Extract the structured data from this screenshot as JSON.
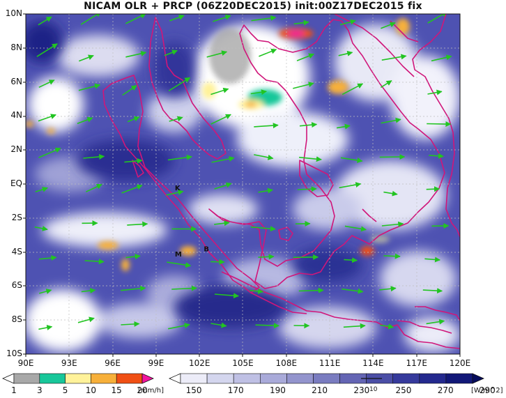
{
  "title": "NICAM OLR + PRCP (06Z20DEC2015) init:00Z17DEC2015 fix",
  "map": {
    "lat_labels": [
      "10N",
      "8N",
      "6N",
      "4N",
      "2N",
      "EQ",
      "2S",
      "4S",
      "6S",
      "8S",
      "10S"
    ],
    "lon_labels": [
      "90E",
      "93E",
      "96E",
      "99E",
      "102E",
      "105E",
      "108E",
      "111E",
      "114E",
      "117E",
      "120E"
    ],
    "lon_range": [
      90,
      120
    ],
    "lat_range": [
      -10,
      10
    ],
    "colors": {
      "coastline": "#d0167a",
      "wind_vector": "#22c422",
      "grid": "#bfbfbf"
    },
    "station_markers": [
      {
        "label": "K",
        "lon": 100.3,
        "lat": -0.2
      },
      {
        "label": "M",
        "lon": 100.3,
        "lat": -4.1
      },
      {
        "label": "B",
        "lon": 102.3,
        "lat": -3.8
      }
    ]
  },
  "prcp_colorbar": {
    "ticks": [
      "1",
      "3",
      "5",
      "10",
      "15",
      "20"
    ],
    "unit": "[mm/h]",
    "colors": [
      "#ffffff",
      "#a8a8a8",
      "#18c79a",
      "#fff29a",
      "#f7b03a",
      "#f04f14",
      "#f0159e"
    ]
  },
  "olr_colorbar": {
    "ticks": [
      "150",
      "170",
      "190",
      "210",
      "230",
      "250",
      "270",
      "290"
    ],
    "unit": "[W/m^2]",
    "vector_ref": "10",
    "colors": [
      "#ffffff",
      "#ececf8",
      "#d4d6ee",
      "#bfc0e4",
      "#a9aad9",
      "#9394cd",
      "#7a7cc0",
      "#6465b4",
      "#4b4ea6",
      "#363a9c",
      "#24298e",
      "#121878",
      "#060c5c"
    ]
  }
}
